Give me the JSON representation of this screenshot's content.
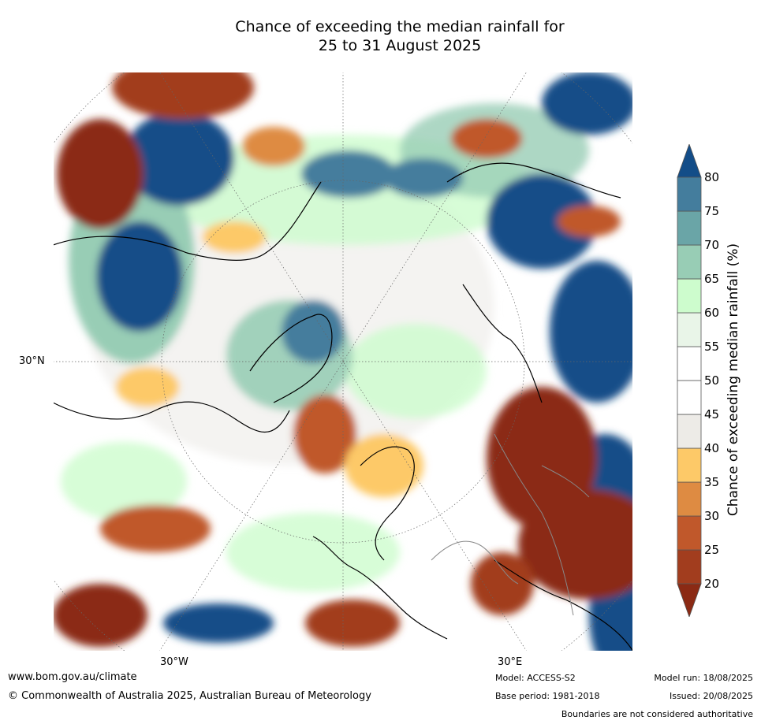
{
  "title": {
    "line1": "Chance of exceeding the median rainfall for",
    "line2": "25 to 31 August 2025"
  },
  "axes": {
    "lat_label": "30°N",
    "lon_labels": [
      "30°W",
      "30°E"
    ]
  },
  "colorbar": {
    "label": "Chance of exceeding median rainfall (%)",
    "ticks": [
      "20",
      "25",
      "30",
      "35",
      "40",
      "45",
      "50",
      "55",
      "60",
      "65",
      "70",
      "75",
      "80"
    ],
    "colors": {
      "below_20": "#8b2a14",
      "c20_25": "#a23d1e",
      "c25_30": "#c0582b",
      "c30_35": "#de8b42",
      "c35_40": "#fdc968",
      "c40_45": "#edebe7",
      "c45_50": "#ffffff",
      "c50_55": "#ffffff",
      "c55_60": "#e9f5e8",
      "c60_65": "#cdfccd",
      "c65_70": "#98cdb5",
      "c70_75": "#6aa5a7",
      "c75_80": "#447d9d",
      "above_80": "#134d88"
    }
  },
  "footer": {
    "website": "www.bom.gov.au/climate",
    "copyright": "© Commonwealth of Australia 2025, Australian Bureau of Meteorology",
    "model": "Model: ACCESS-S2",
    "base_period": "Base period: 1981-2018",
    "model_run": "Model run: 18/08/2025",
    "issued": "Issued: 20/08/2025",
    "disclaimer": "Boundaries are not considered authoritative"
  }
}
